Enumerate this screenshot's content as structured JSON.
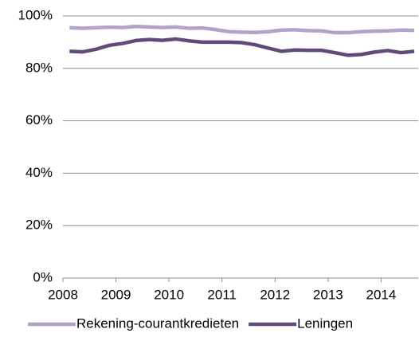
{
  "chart_data": {
    "type": "line",
    "x": [
      2008.125,
      2008.375,
      2008.625,
      2008.875,
      2009.125,
      2009.375,
      2009.625,
      2009.875,
      2010.125,
      2010.375,
      2010.625,
      2010.875,
      2011.125,
      2011.375,
      2011.625,
      2011.875,
      2012.125,
      2012.375,
      2012.625,
      2012.875,
      2013.125,
      2013.375,
      2013.625,
      2013.875,
      2014.125,
      2014.375,
      2014.625
    ],
    "series": [
      {
        "name": "Rekening-courantkredieten",
        "color": "#b3a2c7",
        "values": [
          95.5,
          95.3,
          95.5,
          95.7,
          95.6,
          96,
          95.8,
          95.6,
          95.8,
          95.3,
          95.4,
          94.8,
          94,
          93.8,
          93.7,
          94,
          94.6,
          94.7,
          94.4,
          94.3,
          93.6,
          93.6,
          94,
          94.2,
          94.3,
          94.6,
          94.5
        ]
      },
      {
        "name": "Leningen",
        "color": "#604a7b",
        "values": [
          86.5,
          86.3,
          87.3,
          88.8,
          89.5,
          90.6,
          91,
          90.7,
          91.2,
          90.5,
          90,
          90,
          90,
          89.8,
          89,
          87.7,
          86.5,
          87,
          86.9,
          86.9,
          86,
          85,
          85.3,
          86.2,
          86.8,
          86,
          86.5
        ]
      }
    ],
    "xlim": [
      2008,
      2014.7
    ],
    "xticks": [
      2008,
      2009,
      2010,
      2011,
      2012,
      2013,
      2014
    ],
    "ylim": [
      0,
      100
    ],
    "yticks": [
      {
        "value": 0,
        "label": "0%"
      },
      {
        "value": 20,
        "label": "20%"
      },
      {
        "value": 40,
        "label": "40%"
      },
      {
        "value": 60,
        "label": "60%"
      },
      {
        "value": 80,
        "label": "80%"
      },
      {
        "value": 100,
        "label": "100%"
      }
    ],
    "grid": true,
    "legend": "bottom"
  }
}
